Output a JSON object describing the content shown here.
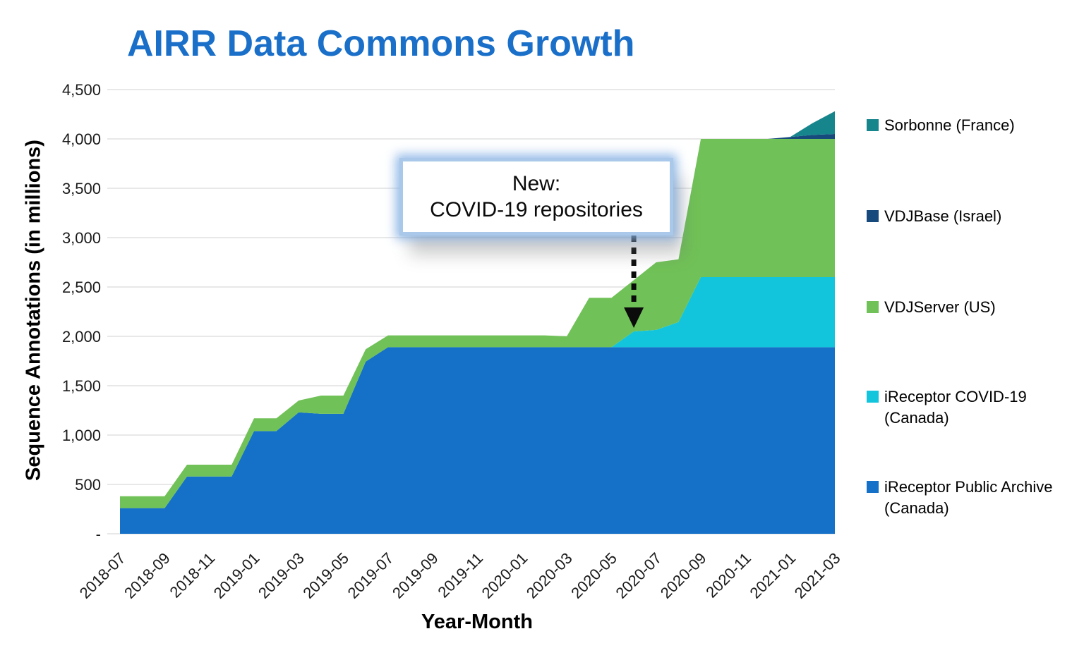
{
  "title": "AIRR Data Commons Growth",
  "title_color": "#1A6FC9",
  "annotation": {
    "line1": "New:",
    "line2": "COVID-19 repositories"
  },
  "chart_data": {
    "type": "area",
    "stacked": true,
    "title": "AIRR Data Commons Growth",
    "xlabel": "Year-Month",
    "ylabel": "Sequence Annotations (in millions)",
    "ylim": [
      0,
      4500
    ],
    "ytick_step": 500,
    "zero_tick_label": "-",
    "grid": true,
    "legend_position": "right",
    "x_tick_every": 2,
    "x": [
      "2018-07",
      "2018-08",
      "2018-09",
      "2018-10",
      "2018-11",
      "2018-12",
      "2019-01",
      "2019-02",
      "2019-03",
      "2019-04",
      "2019-05",
      "2019-06",
      "2019-07",
      "2019-08",
      "2019-09",
      "2019-10",
      "2019-11",
      "2019-12",
      "2020-01",
      "2020-02",
      "2020-03",
      "2020-04",
      "2020-05",
      "2020-06",
      "2020-07",
      "2020-08",
      "2020-09",
      "2020-10",
      "2020-11",
      "2020-12",
      "2021-01",
      "2021-02",
      "2021-03"
    ],
    "series": [
      {
        "name": "iReceptor Public Archive (Canada)",
        "legend_lines": [
          "iReceptor Public Archive",
          "(Canada)"
        ],
        "color": "#1571C8",
        "values": [
          260,
          260,
          260,
          580,
          580,
          580,
          1040,
          1040,
          1230,
          1215,
          1215,
          1745,
          1890,
          1890,
          1890,
          1890,
          1890,
          1890,
          1890,
          1890,
          1890,
          1890,
          1890,
          1890,
          1890,
          1890,
          1890,
          1890,
          1890,
          1890,
          1890,
          1890,
          1890
        ]
      },
      {
        "name": "iReceptor COVID-19 (Canada)",
        "legend_lines": [
          "iReceptor COVID-19",
          "(Canada)"
        ],
        "color": "#12C5DC",
        "values": [
          0,
          0,
          0,
          0,
          0,
          0,
          0,
          0,
          0,
          0,
          0,
          0,
          0,
          0,
          0,
          0,
          0,
          0,
          0,
          0,
          0,
          0,
          0,
          160,
          175,
          255,
          710,
          710,
          710,
          710,
          710,
          710,
          710
        ]
      },
      {
        "name": "VDJServer (US)",
        "legend_lines": [
          "VDJServer (US)"
        ],
        "color": "#70C157",
        "values": [
          120,
          120,
          120,
          120,
          120,
          120,
          130,
          130,
          120,
          185,
          185,
          125,
          120,
          120,
          120,
          120,
          120,
          120,
          120,
          120,
          110,
          500,
          500,
          520,
          685,
          635,
          1400,
          1400,
          1400,
          1400,
          1400,
          1400,
          1400
        ]
      },
      {
        "name": "VDJBase (Israel)",
        "legend_lines": [
          "VDJBase (Israel)"
        ],
        "color": "#164A7C",
        "values": [
          0,
          0,
          0,
          0,
          0,
          0,
          0,
          0,
          0,
          0,
          0,
          0,
          0,
          0,
          0,
          0,
          0,
          0,
          0,
          0,
          0,
          0,
          0,
          0,
          0,
          0,
          0,
          0,
          0,
          0,
          20,
          40,
          50
        ]
      },
      {
        "name": "Sorbonne (France)",
        "legend_lines": [
          "Sorbonne (France)"
        ],
        "color": "#17858C",
        "values": [
          0,
          0,
          0,
          0,
          0,
          0,
          0,
          0,
          0,
          0,
          0,
          0,
          0,
          0,
          0,
          0,
          0,
          0,
          0,
          0,
          0,
          0,
          0,
          0,
          0,
          0,
          0,
          0,
          0,
          0,
          0,
          120,
          230
        ]
      }
    ],
    "annotation": {
      "text_lines": [
        "New:",
        "COVID-19 repositories"
      ],
      "arrow_points_to_x": "2020-06"
    }
  }
}
